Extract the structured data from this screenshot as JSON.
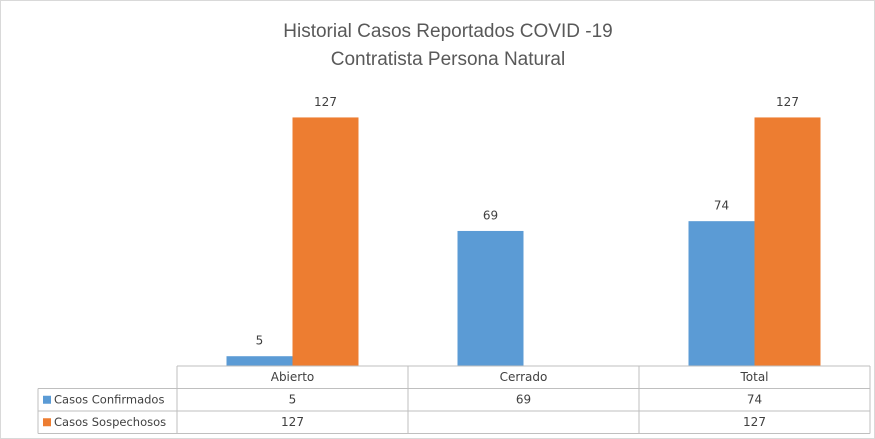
{
  "chart_data": {
    "type": "bar",
    "title": [
      "Historial Casos Reportados COVID -19",
      "Contratista Persona Natural"
    ],
    "categories": [
      "Abierto",
      "Cerrado",
      "Total"
    ],
    "series": [
      {
        "name": "Casos Confirmados",
        "color": "#5b9bd5",
        "values": [
          5,
          69,
          74
        ]
      },
      {
        "name": "Casos Sospechosos",
        "color": "#ed7d31",
        "values": [
          127,
          null,
          127
        ]
      }
    ],
    "ylim": [
      0,
      140
    ],
    "legend": "table"
  }
}
